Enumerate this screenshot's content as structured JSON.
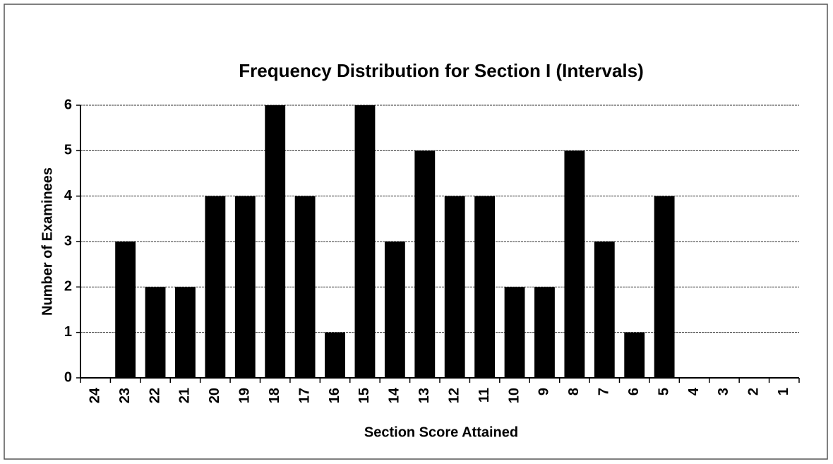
{
  "chart_data": {
    "type": "bar",
    "title": "Frequency Distribution for Section I (Intervals)",
    "x_label": "Section Score Attained",
    "y_label": "Number of Examinees",
    "categories": [
      "24",
      "23",
      "22",
      "21",
      "20",
      "19",
      "18",
      "17",
      "16",
      "15",
      "14",
      "13",
      "12",
      "11",
      "10",
      "9",
      "8",
      "7",
      "6",
      "5",
      "4",
      "3",
      "2",
      "1"
    ],
    "values": [
      0,
      3,
      2,
      2,
      4,
      4,
      6,
      4,
      1,
      6,
      3,
      5,
      4,
      4,
      2,
      2,
      5,
      3,
      1,
      4,
      0,
      0,
      0,
      0
    ],
    "color": "#000000",
    "ylim": [
      0,
      6
    ],
    "yticks": [
      0,
      1,
      2,
      3,
      4,
      5,
      6
    ],
    "grid": true
  }
}
